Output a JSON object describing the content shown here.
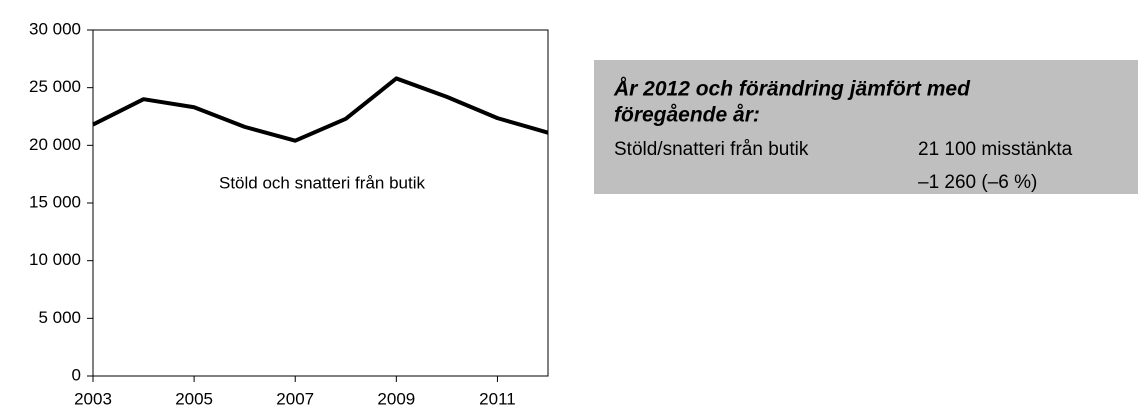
{
  "chart_data": {
    "type": "line",
    "x": [
      2003,
      2004,
      2005,
      2006,
      2007,
      2008,
      2009,
      2010,
      2011,
      2012
    ],
    "series": [
      {
        "name": "Stöld och snatteri från butik",
        "color": "#000000",
        "values": [
          21800,
          24000,
          23300,
          21600,
          20400,
          22300,
          25800,
          24200,
          22360,
          21100
        ]
      }
    ],
    "xlim": [
      2003,
      2012
    ],
    "xticks": [
      2003,
      2005,
      2007,
      2009,
      2011
    ],
    "ylim": [
      0,
      30000
    ],
    "yticks": [
      0,
      {
        "value": 5000,
        "label": "5 000"
      },
      {
        "value": 10000,
        "label": "10 000"
      },
      {
        "value": 15000,
        "label": "15 000"
      },
      {
        "value": 20000,
        "label": "20 000"
      },
      {
        "value": 25000,
        "label": "25 000"
      },
      {
        "value": 30000,
        "label": "30 000"
      }
    ],
    "grid": false
  },
  "info_box": {
    "title_lines": [
      "År 2012 och förändring jämfört med",
      "föregående år:"
    ],
    "row": {
      "label": "Stöld/snatteri från butik",
      "values": [
        "21 100 misstänkta",
        "–1 260 (–6 %)"
      ]
    }
  }
}
